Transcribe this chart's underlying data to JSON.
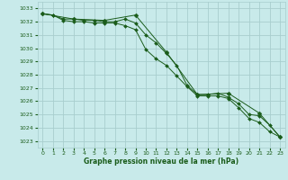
{
  "xlabel": "Graphe pression niveau de la mer (hPa)",
  "background_color": "#c8eaea",
  "grid_color": "#a8cece",
  "line_color": "#1a5c1a",
  "xlim": [
    -0.5,
    23.5
  ],
  "ylim": [
    1022.5,
    1033.5
  ],
  "yticks": [
    1023,
    1024,
    1025,
    1026,
    1027,
    1028,
    1029,
    1030,
    1031,
    1032,
    1033
  ],
  "xticks": [
    0,
    1,
    2,
    3,
    4,
    5,
    6,
    7,
    8,
    9,
    10,
    11,
    12,
    13,
    14,
    15,
    16,
    17,
    18,
    19,
    20,
    21,
    22,
    23
  ],
  "series": [
    {
      "x": [
        0,
        1,
        2,
        3,
        4,
        5,
        6,
        7,
        8,
        9,
        10,
        11,
        12,
        13,
        14,
        15,
        16,
        17,
        18,
        19,
        20,
        21,
        22,
        23
      ],
      "y": [
        1032.6,
        1032.5,
        1032.2,
        1032.2,
        1032.1,
        1032.1,
        1032.0,
        1032.0,
        1032.2,
        1031.9,
        1031.0,
        1030.4,
        1029.6,
        1028.7,
        1027.2,
        1026.5,
        1026.5,
        1026.6,
        1026.3,
        1025.8,
        1025.0,
        1024.9,
        1024.2,
        1023.3
      ]
    },
    {
      "x": [
        0,
        1,
        2,
        3,
        4,
        5,
        6,
        7,
        8,
        9,
        10,
        11,
        12,
        13,
        14,
        15,
        16,
        17,
        18,
        19,
        20,
        21,
        22,
        23
      ],
      "y": [
        1032.6,
        1032.5,
        1032.1,
        1032.0,
        1032.0,
        1031.9,
        1031.9,
        1031.9,
        1031.7,
        1031.4,
        1029.9,
        1029.2,
        1028.7,
        1027.9,
        1027.1,
        1026.4,
        1026.4,
        1026.4,
        1026.2,
        1025.5,
        1024.7,
        1024.4,
        1023.7,
        1023.3
      ]
    },
    {
      "x": [
        0,
        3,
        6,
        9,
        12,
        15,
        18,
        21,
        23
      ],
      "y": [
        1032.6,
        1032.2,
        1032.1,
        1032.5,
        1029.7,
        1026.5,
        1026.6,
        1025.1,
        1023.3
      ]
    }
  ]
}
